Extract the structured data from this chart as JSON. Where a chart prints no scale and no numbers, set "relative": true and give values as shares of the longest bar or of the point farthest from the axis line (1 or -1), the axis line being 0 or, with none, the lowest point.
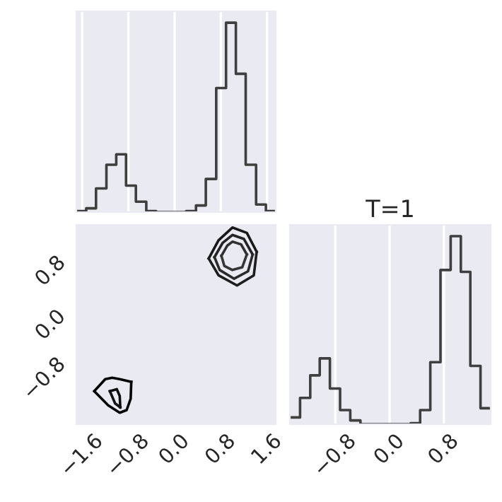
{
  "chart_data": [
    {
      "type": "step",
      "relative": true,
      "color": "#3f3f3f",
      "grid": "x",
      "tick_labels": false,
      "xlim": [
        -1.7,
        1.75
      ],
      "xticks": [
        -1.6,
        -0.8,
        0.0,
        0.8,
        1.6
      ],
      "x": [
        -1.7,
        -1.53,
        -1.36,
        -1.18,
        -1.01,
        -0.84,
        -0.67,
        -0.49,
        -0.32,
        -0.15,
        0.03,
        0.2,
        0.37,
        0.54,
        0.72,
        0.89,
        1.06,
        1.23,
        1.41,
        1.58,
        1.75
      ],
      "values": [
        0.005,
        0.02,
        0.125,
        0.25,
        0.305,
        0.14,
        0.055,
        0.005,
        0,
        0,
        0,
        0.005,
        0.035,
        0.175,
        0.655,
        1,
        0.73,
        0.25,
        0.04,
        0.005,
        0.005
      ]
    },
    {
      "type": "line",
      "grid": false,
      "line_style": "solid",
      "marker": "none",
      "xlim": [
        -1.7,
        1.75
      ],
      "ylim": [
        -1.47,
        1.49
      ],
      "xticks": [
        {
          "value": -1.6,
          "label": "−1.6"
        },
        {
          "value": -0.8,
          "label": "−0.8"
        },
        {
          "value": 0.0,
          "label": "0.0"
        },
        {
          "value": 0.8,
          "label": "0.8"
        },
        {
          "value": 1.6,
          "label": "1.6"
        }
      ],
      "yticks": [
        {
          "value": -0.8,
          "label": "−0.8"
        },
        {
          "value": 0.0,
          "label": "0.0"
        },
        {
          "value": 0.8,
          "label": "0.8"
        }
      ],
      "series": [
        {
          "color": "#000000",
          "x": [
            -1.39,
            -1.2,
            -1.08,
            -0.95,
            -0.75
          ],
          "values": [
            -0.98,
            -0.8,
            -0.78,
            -0.8,
            -0.84
          ]
        },
        {
          "color": "#060606",
          "x": [
            -1.39,
            -1.15,
            -0.95,
            -0.83,
            -0.76,
            -0.75
          ],
          "values": [
            -0.98,
            -1.19,
            -1.3,
            -1.26,
            -1.09,
            -0.84
          ]
        },
        {
          "color": "#0c0c0c",
          "x": [
            -1.12,
            -1.0,
            -0.95,
            -0.94
          ],
          "values": [
            -0.98,
            -0.95,
            -1.05,
            -1.22
          ]
        },
        {
          "color": "#121212",
          "x": [
            -1.12,
            -1.03,
            -0.94
          ],
          "values": [
            -0.98,
            -1.16,
            -1.22
          ]
        },
        {
          "color": "#181818",
          "x": [
            0.59,
            0.76,
            1.0,
            1.25,
            1.42
          ],
          "values": [
            0.99,
            1.26,
            1.45,
            1.37,
            1.09
          ]
        },
        {
          "color": "#1e1e1e",
          "x": [
            0.59,
            0.76,
            1.08,
            1.37,
            1.42
          ],
          "values": [
            0.99,
            0.74,
            0.59,
            0.74,
            1.09
          ]
        },
        {
          "color": "#242424",
          "x": [
            0.69,
            0.83,
            1.0,
            1.2,
            1.35
          ],
          "values": [
            1.01,
            1.22,
            1.34,
            1.28,
            1.05
          ]
        },
        {
          "color": "#2a2a2a",
          "x": [
            0.69,
            0.78,
            1.03,
            1.27,
            1.35
          ],
          "values": [
            1.01,
            0.82,
            0.69,
            0.8,
            1.05
          ]
        },
        {
          "color": "#303030",
          "x": [
            0.81,
            0.91,
            1.0,
            1.15,
            1.25
          ],
          "values": [
            1.03,
            1.18,
            1.24,
            1.2,
            1.05
          ]
        },
        {
          "color": "#363636",
          "x": [
            0.81,
            0.86,
            1.0,
            1.17,
            1.25
          ],
          "values": [
            1.03,
            0.88,
            0.82,
            0.86,
            1.05
          ]
        }
      ]
    },
    {
      "type": "step",
      "relative": true,
      "title": "T=1",
      "color": "#3f3f3f",
      "grid": "x",
      "tick_labels": "x",
      "xlim": [
        -1.47,
        1.49
      ],
      "xticks": [
        {
          "value": -0.8,
          "label": "−0.8"
        },
        {
          "value": 0.0,
          "label": "0.0"
        },
        {
          "value": 0.8,
          "label": "0.8"
        }
      ],
      "x": [
        -1.47,
        -1.32,
        -1.17,
        -1.03,
        -0.88,
        -0.73,
        -0.58,
        -0.43,
        -0.29,
        -0.14,
        0.01,
        0.16,
        0.31,
        0.45,
        0.6,
        0.75,
        0.9,
        1.05,
        1.19,
        1.34,
        1.49
      ],
      "values": [
        0.036,
        0.14,
        0.26,
        0.35,
        0.19,
        0.075,
        0.02,
        0,
        0,
        0,
        0,
        0,
        0.005,
        0.075,
        0.33,
        0.82,
        1,
        0.81,
        0.31,
        0.085,
        0.085
      ]
    }
  ]
}
